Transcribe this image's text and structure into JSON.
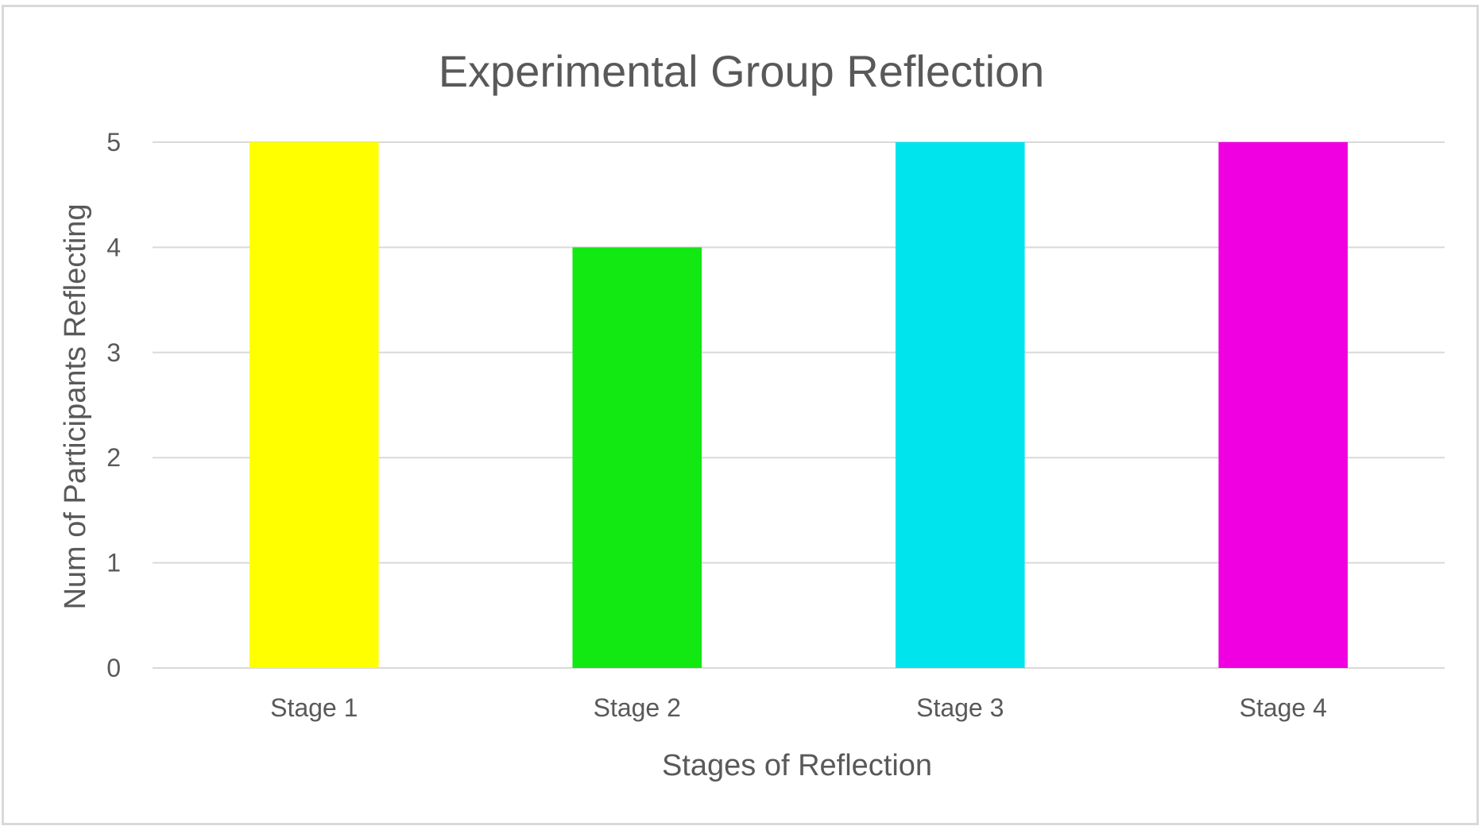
{
  "chart_data": {
    "type": "bar",
    "title": "Experimental Group Reflection",
    "xlabel": "Stages of Reflection",
    "ylabel": "Num of Participants Reflecting",
    "categories": [
      "Stage 1",
      "Stage 2",
      "Stage 3",
      "Stage 4"
    ],
    "values": [
      5,
      4,
      5,
      5
    ],
    "colors": [
      "#ffff00",
      "#12e812",
      "#00e5ed",
      "#f000e0"
    ],
    "ylim": [
      0,
      5
    ],
    "yticks": [
      0,
      1,
      2,
      3,
      4,
      5
    ],
    "grid": true,
    "legend": "none"
  }
}
